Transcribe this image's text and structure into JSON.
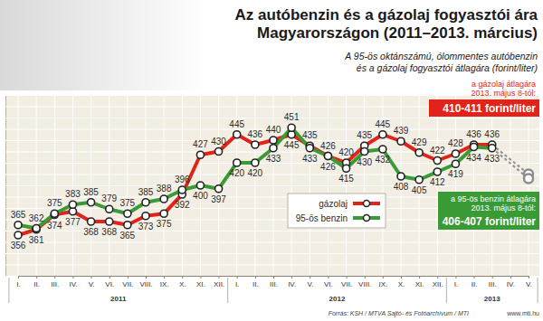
{
  "chart_data": {
    "type": "line",
    "title": [
      "Az autóbenzin és a gázolaj fogyasztói ára",
      "Magyarországon (2011–2013. március)"
    ],
    "subtitle": [
      "A 95-ös oktánszámú, ólommentes autóbenzin",
      "és a gázolaj fogyasztói átlagára (forint/liter)"
    ],
    "categories": [
      "I.",
      "II.",
      "III.",
      "IV.",
      "V.",
      "VI.",
      "VII.",
      "VIII.",
      "IX.",
      "X.",
      "XI.",
      "XII.",
      "I.",
      "II.",
      "III.",
      "IV.",
      "V.",
      "VI.",
      "VII.",
      "VIII.",
      "IX.",
      "X.",
      "XI.",
      "XII.",
      "I.",
      "II.",
      "III.",
      "IV.",
      "V."
    ],
    "year_labels": [
      "2011",
      "2012",
      "2013"
    ],
    "series": [
      {
        "name": "gázolaj",
        "color": "#e2231a",
        "marker": "circle",
        "line_style": "solid",
        "values": [
          356,
          361,
          374,
          377,
          368,
          368,
          365,
          373,
          375,
          392,
          427,
          430,
          445,
          436,
          440,
          445,
          435,
          426,
          420,
          435,
          445,
          439,
          429,
          422,
          428,
          436,
          436,
          null,
          null
        ]
      },
      {
        "name": "95-ös benzin",
        "color": "#3a9a35",
        "marker": "circle",
        "line_style": "solid",
        "values": [
          365,
          362,
          375,
          383,
          385,
          379,
          375,
          385,
          388,
          396,
          400,
          397,
          420,
          420,
          433,
          451,
          433,
          426,
          415,
          430,
          432,
          408,
          405,
          412,
          419,
          434,
          433,
          null,
          null
        ]
      }
    ],
    "ylim": [
      320,
      480
    ],
    "yticks": [
      320,
      330,
      340,
      350,
      360,
      370,
      380,
      390,
      400,
      410,
      420,
      430,
      440,
      450,
      460,
      470,
      480
    ],
    "grid": true,
    "tick_labels": "x",
    "data_labels": true,
    "legend": "center",
    "annotations": [
      {
        "text": [
          "a gázolaj átlagára",
          "2013. május 8-tól:",
          "410-411 forint/liter"
        ],
        "x": 28,
        "y": 410,
        "color": "#e2231a"
      },
      {
        "text": [
          "a 95-ös benzin átlagára",
          "2013. május 8-tól:",
          "406-407 forint/liter"
        ],
        "x": 28,
        "y": 406,
        "color": "#3a9a35"
      }
    ],
    "source": "Forrás: KSH / MTVA Sajtó- és Fotóarchívum / MTI",
    "website": "www.mti.hu"
  }
}
